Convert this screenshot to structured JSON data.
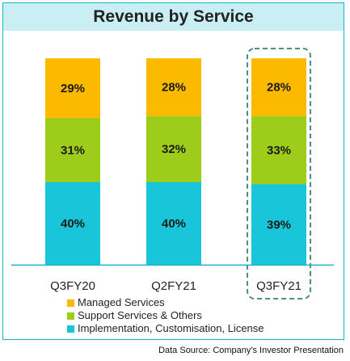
{
  "chart_data": {
    "type": "bar",
    "stacked": true,
    "title": "Revenue by Service",
    "categories": [
      "Q3FY20",
      "Q2FY21",
      "Q3FY21"
    ],
    "highlight_category": "Q3FY21",
    "ylim": [
      0,
      100
    ],
    "series": [
      {
        "name": "Implementation, Customisation, License",
        "color": "#19c5d9",
        "values": [
          40,
          40,
          39
        ],
        "labels": [
          "40%",
          "40%",
          "39%"
        ]
      },
      {
        "name": "Support Services & Others",
        "color": "#9dcc1a",
        "values": [
          31,
          32,
          33
        ],
        "labels": [
          "31%",
          "32%",
          "33%"
        ]
      },
      {
        "name": "Managed Services",
        "color": "#fbb900",
        "values": [
          29,
          28,
          28
        ],
        "labels": [
          "29%",
          "28%",
          "28%"
        ]
      }
    ],
    "legend": [
      "Managed Services",
      "Support Services & Others",
      "Implementation, Customisation, License"
    ],
    "legend_position": "bottom-left",
    "grid": false
  },
  "source_note": "Data Source: Company's Investor Presentation",
  "colors": {
    "title_band": "#c9eef4",
    "frame": "#19b4cc",
    "baseline": "#19b4cc",
    "highlight_box": "#4a8f80"
  }
}
